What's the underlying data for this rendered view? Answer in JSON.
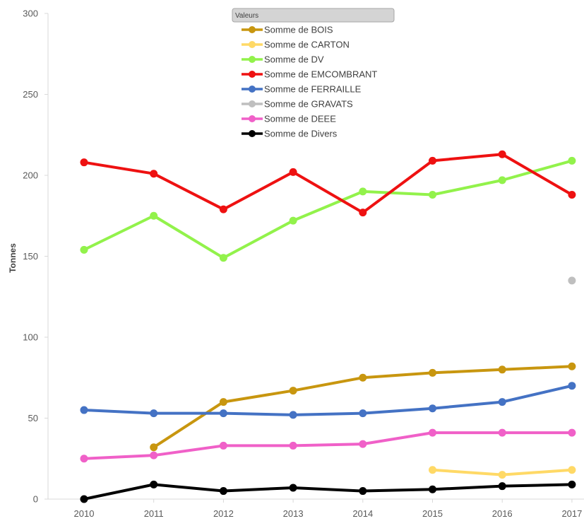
{
  "chart_data": {
    "type": "line",
    "ylabel": "Tonnes",
    "xlabel": "",
    "ylim": [
      0,
      300
    ],
    "yticks": [
      0,
      50,
      100,
      150,
      200,
      250,
      300
    ],
    "categories": [
      "2010",
      "2011",
      "2012",
      "2013",
      "2014",
      "2015",
      "2016",
      "2017"
    ],
    "legend_title": "Valeurs",
    "legend_position": "top-center",
    "grid": false,
    "series": [
      {
        "name": "Somme de BOIS",
        "color": "#C8960F",
        "values": [
          null,
          32,
          60,
          67,
          75,
          78,
          80,
          82
        ]
      },
      {
        "name": "Somme de CARTON",
        "color": "#FFD966",
        "values": [
          null,
          null,
          null,
          null,
          null,
          18,
          15,
          18
        ]
      },
      {
        "name": "Somme de DV",
        "color": "#92F24B",
        "values": [
          154,
          175,
          149,
          172,
          190,
          188,
          197,
          209
        ]
      },
      {
        "name": "Somme de EMCOMBRANT",
        "color": "#EE1111",
        "values": [
          208,
          201,
          179,
          202,
          177,
          209,
          213,
          188
        ]
      },
      {
        "name": "Somme de FERRAILLE",
        "color": "#4472C4",
        "values": [
          55,
          53,
          53,
          52,
          53,
          56,
          60,
          70
        ]
      },
      {
        "name": "Somme de GRAVATS",
        "color": "#BFBFBF",
        "values": [
          null,
          null,
          null,
          null,
          null,
          null,
          null,
          135
        ]
      },
      {
        "name": "Somme de DEEE",
        "color": "#F060C8",
        "values": [
          25,
          27,
          33,
          33,
          34,
          41,
          41,
          41
        ]
      },
      {
        "name": "Somme de Divers",
        "color": "#000000",
        "values": [
          0,
          9,
          5,
          7,
          5,
          6,
          8,
          9
        ]
      }
    ]
  }
}
